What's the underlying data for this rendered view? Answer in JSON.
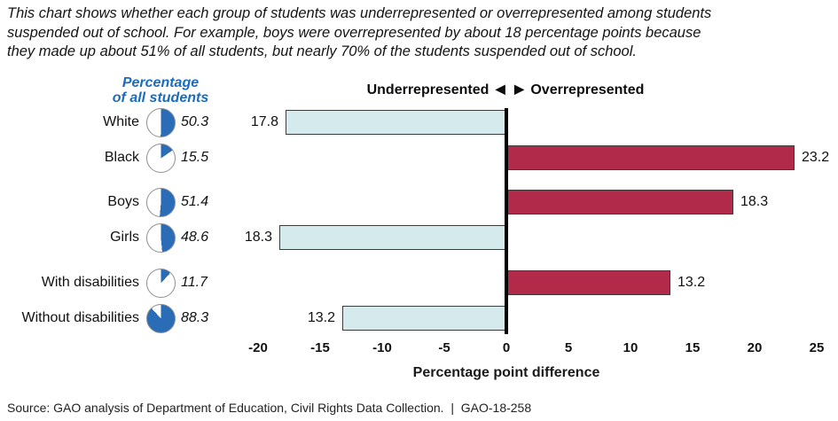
{
  "intro": {
    "lines": [
      "This chart shows whether each group of students was underrepresented or overrepresented among students",
      "suspended out of school. For example, boys were overrepresented by about 18 percentage points because",
      "they made up about 51% of all students, but nearly 70% of the students suspended out of school."
    ]
  },
  "left_header": {
    "line1": "Percentage",
    "line2": "of all students"
  },
  "direction_header": {
    "underrepresented": "Underrepresented",
    "left_arrow": "◀",
    "right_arrow": "▶",
    "overrepresented": "Overrepresented"
  },
  "chart_data": {
    "type": "bar",
    "orientation": "horizontal-diverging",
    "title": "Underrepresented / Overrepresented among students suspended out of school",
    "categories": [
      "White",
      "Black",
      "Boys",
      "Girls",
      "With disabilities",
      "Without disabilities"
    ],
    "pct_of_all_students": [
      50.3,
      15.5,
      51.4,
      48.6,
      11.7,
      88.3
    ],
    "pct_labels": [
      "50.3",
      "15.5",
      "51.4",
      "48.6",
      "11.7",
      "88.3"
    ],
    "values": [
      -17.8,
      23.2,
      18.3,
      -18.3,
      13.2,
      -13.2
    ],
    "value_labels": [
      "17.8",
      "23.2",
      "18.3",
      "18.3",
      "13.2",
      "13.2"
    ],
    "xlabel": "Percentage point difference",
    "x_ticks": [
      -20,
      -15,
      -10,
      -5,
      0,
      5,
      10,
      15,
      20,
      25
    ],
    "xlim": [
      -20,
      25
    ],
    "grid": false,
    "colors": {
      "negative_bar": "#d5eaec",
      "positive_bar": "#b22a4a",
      "bar_border": "#3c3c3c",
      "pie_fill": "#2a6db6",
      "header_blue": "#1c6cbe",
      "zero_line": "#000000"
    }
  },
  "source": {
    "text": "Source: GAO analysis of Department of Education, Civil Rights Data Collection.  |  GAO-18-258"
  }
}
